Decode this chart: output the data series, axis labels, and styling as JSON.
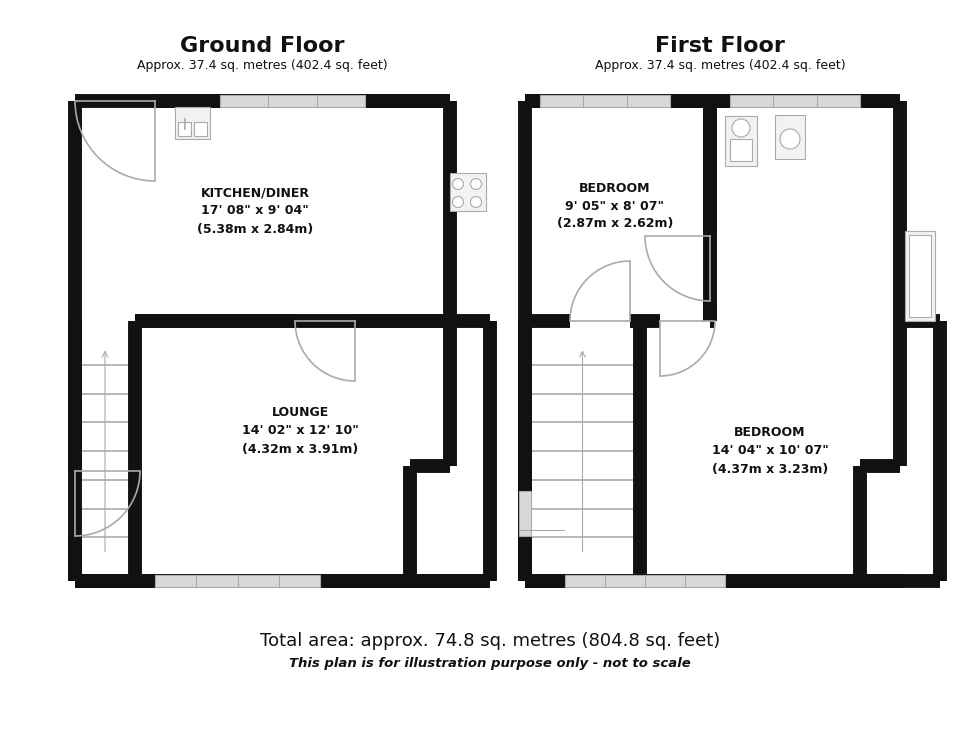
{
  "bg_color": "#ffffff",
  "wall_color": "#111111",
  "gray": "#aaaaaa",
  "light_gray": "#d8d8d8",
  "fixture_fill": "#f2f2f2",
  "title_gf": "Ground Floor",
  "subtitle_gf": "Approx. 37.4 sq. metres (402.4 sq. feet)",
  "title_ff": "First Floor",
  "subtitle_ff": "Approx. 37.4 sq. metres (402.4 sq. feet)",
  "label_kitchen": "KITCHEN/DINER\n17' 08\" x 9' 04\"\n(5.38m x 2.84m)",
  "label_lounge": "LOUNGE\n14' 02\" x 12' 10\"\n(4.32m x 3.91m)",
  "label_bed1": "BEDROOM\n9' 05\" x 8' 07\"\n(2.87m x 2.62m)",
  "label_bed2": "BEDROOM\n14' 04\" x 10' 07\"\n(4.37m x 3.23m)",
  "total_area": "Total area: approx. 74.8 sq. metres (804.8 sq. feet)",
  "disclaimer": "This plan is for illustration purpose only - not to scale"
}
